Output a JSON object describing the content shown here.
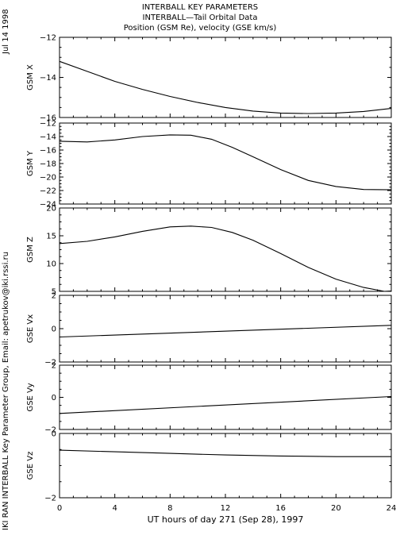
{
  "header": {
    "title": "INTERBALL KEY PARAMETERS",
    "subtitle": "INTERBALL—Tail Orbital Data",
    "subtitle2": "Position (GSM Re), velocity (GSE km/s)"
  },
  "side": {
    "date": "Jul 14 1998",
    "credit": "IKI RAN INTERBALL Key Parameter Group, Email: apetrukov@iki.rssi.ru"
  },
  "colors": {
    "line": "#000000",
    "background": "#ffffff"
  },
  "chart_data": {
    "type": "line",
    "xlabel": "UT hours of day 271 (Sep 28), 1997",
    "xlim": [
      0,
      24
    ],
    "xticks": [
      0,
      4,
      8,
      12,
      16,
      20,
      24
    ],
    "panels": [
      {
        "ylabel": "GSM X",
        "ylim": [
          -16,
          -12
        ],
        "yticks": [
          -12,
          -14,
          -16
        ],
        "x": [
          0,
          2,
          4,
          6,
          8,
          10,
          12,
          14,
          16,
          18,
          20,
          22,
          24
        ],
        "y": [
          -13.2,
          -13.7,
          -14.2,
          -14.6,
          -14.95,
          -15.25,
          -15.5,
          -15.68,
          -15.78,
          -15.8,
          -15.78,
          -15.7,
          -15.55
        ]
      },
      {
        "ylabel": "GSM Y",
        "ylim": [
          -24,
          -12
        ],
        "yticks": [
          -12,
          -14,
          -16,
          -18,
          -20,
          -22,
          -24
        ],
        "x": [
          0,
          2,
          4,
          6,
          8,
          9.5,
          11,
          12.5,
          14,
          16,
          18,
          20,
          22,
          24
        ],
        "y": [
          -14.7,
          -14.8,
          -14.5,
          -14.0,
          -13.75,
          -13.8,
          -14.4,
          -15.6,
          -17.0,
          -18.9,
          -20.5,
          -21.4,
          -21.85,
          -21.9
        ]
      },
      {
        "ylabel": "GSM Z",
        "ylim": [
          5,
          20
        ],
        "yticks": [
          20,
          15,
          10,
          5
        ],
        "x": [
          0,
          2,
          4,
          6,
          8,
          9.5,
          11,
          12.5,
          14,
          16,
          18,
          20,
          22,
          23.5,
          24
        ],
        "y": [
          13.6,
          14.0,
          14.8,
          15.8,
          16.6,
          16.75,
          16.5,
          15.6,
          14.2,
          11.8,
          9.3,
          7.2,
          5.7,
          5.0,
          5.05
        ]
      },
      {
        "ylabel": "GSE Vx",
        "ylim": [
          -2,
          2
        ],
        "yticks": [
          2,
          0,
          -2
        ],
        "x": [
          0,
          24
        ],
        "y": [
          -0.5,
          0.2
        ]
      },
      {
        "ylabel": "GSE Vy",
        "ylim": [
          -2,
          2
        ],
        "yticks": [
          2,
          0,
          -2
        ],
        "x": [
          0,
          24
        ],
        "y": [
          -1.0,
          0.05
        ]
      },
      {
        "ylabel": "GSE Vz",
        "ylim": [
          -2,
          0
        ],
        "yticks": [
          0,
          -2
        ],
        "x": [
          0,
          4,
          8,
          12,
          16,
          20,
          24
        ],
        "y": [
          -0.52,
          -0.57,
          -0.62,
          -0.67,
          -0.7,
          -0.72,
          -0.72
        ]
      }
    ]
  }
}
